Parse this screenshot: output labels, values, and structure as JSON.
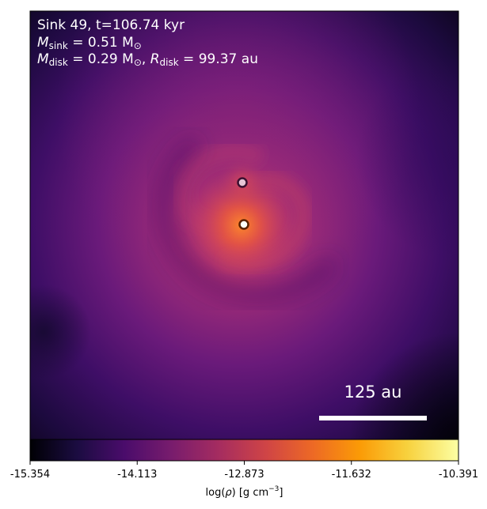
{
  "panel": {
    "title_line1": "Sink 49, t=106.74 kyr",
    "msink_label": "M",
    "msink_sub": "sink",
    "msink_value": " = 0.51 M",
    "msink_unit_sub": "⊙",
    "mdisk_label": "M",
    "mdisk_sub": "disk",
    "mdisk_value": " = 0.29 M",
    "mdisk_unit_sub": "⊙",
    "rdisk_sep": ", ",
    "rdisk_label": "R",
    "rdisk_sub": "disk",
    "rdisk_value": " = 99.37 au",
    "scale_bar_label": "125 au"
  },
  "colorbar": {
    "ticks": [
      "-15.354",
      "-14.113",
      "-12.873",
      "-11.632",
      "-10.391"
    ],
    "label_pre": "log(",
    "label_rho": "ρ",
    "label_post": ") [g cm",
    "label_exp": "−3",
    "label_end": "]",
    "colormap": "inferno"
  },
  "colors": {
    "sink_primary": "#ffffff",
    "sink_primary_ring": "#c05a00",
    "sink_secondary": "#e6c6d6",
    "sink_secondary_ring": "#3a1030",
    "background_dark": "#0d0520",
    "scale_bar": "#ffffff"
  }
}
